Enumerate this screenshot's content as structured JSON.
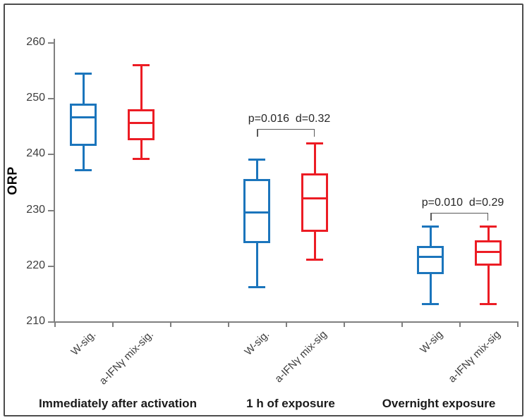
{
  "chart_data": {
    "type": "boxplot",
    "title": "",
    "xlabel": "",
    "ylabel": "ORP",
    "ylim": [
      210,
      260
    ],
    "yticks": [
      210,
      220,
      230,
      240,
      250,
      260
    ],
    "grid": false,
    "legend": null,
    "colors": {
      "w_sig_box": "#1b75bc",
      "ifn_mix_box": "#ec1c24",
      "axis": "#7f7f7f",
      "bracket": "#595959",
      "frame": "#4c4c4c"
    },
    "groups": [
      {
        "label": "Immediately after activation",
        "boxes": [
          {
            "label": "W-sig.",
            "color": "#1b75bc",
            "whisker_low": 237,
            "q1": 241.5,
            "median": 246.5,
            "q3": 249,
            "whisker_high": 254.5
          },
          {
            "label": "a-IFNγ mix-sig.",
            "color": "#ec1c24",
            "whisker_low": 239,
            "q1": 242.5,
            "median": 245.5,
            "q3": 248,
            "whisker_high": 256
          }
        ],
        "annotation": null
      },
      {
        "label": "1 h of exposure",
        "boxes": [
          {
            "label": "W-sig.",
            "color": "#1b75bc",
            "whisker_low": 216,
            "q1": 224,
            "median": 229.5,
            "q3": 235.5,
            "whisker_high": 239
          },
          {
            "label": "a-IFNγ mix-sig",
            "color": "#ec1c24",
            "whisker_low": 221,
            "q1": 226,
            "median": 232,
            "q3": 236.5,
            "whisker_high": 242
          }
        ],
        "annotation": {
          "text": "p=0.016  d=0.32",
          "p": "0.016",
          "d": "0.32",
          "bracket_y": 244.5
        }
      },
      {
        "label": "Overnight exposure",
        "boxes": [
          {
            "label": "W-sig",
            "color": "#1b75bc",
            "whisker_low": 213,
            "q1": 218.5,
            "median": 221.5,
            "q3": 223.5,
            "whisker_high": 227
          },
          {
            "label": "a-IFNγ mix-sig",
            "color": "#ec1c24",
            "whisker_low": 213,
            "q1": 220,
            "median": 222.5,
            "q3": 224.5,
            "whisker_high": 227
          }
        ],
        "annotation": {
          "text": "p=0.010  d=0.29",
          "p": "0.010",
          "d": "0.29",
          "bracket_y": 229.5
        }
      }
    ]
  }
}
